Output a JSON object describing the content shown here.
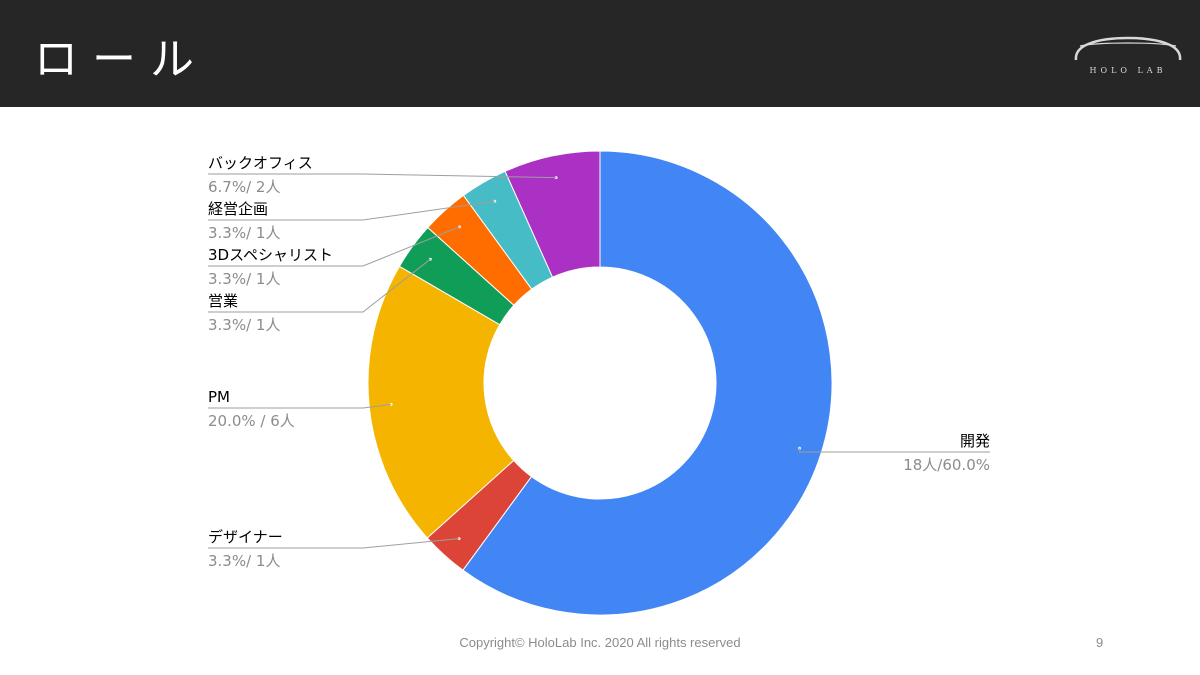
{
  "slide": {
    "title": "ロール",
    "logo_text": "HOLO LAB",
    "footer": "Copyright© HoloLab Inc. 2020 All rights reserved",
    "page_number": "9"
  },
  "colors": {
    "header_bg": "#262626",
    "leader": "#9e9e9e",
    "label": "#000000",
    "value": "#8c8c8c"
  },
  "chart_data": {
    "type": "pie",
    "variant": "donut",
    "start_angle_deg": 0,
    "direction": "clockwise",
    "slices": [
      {
        "name": "開発",
        "percent": 60.0,
        "count": 18,
        "value_label": "18人/60.0%",
        "color": "#4285f4",
        "label_side": "right"
      },
      {
        "name": "デザイナー",
        "percent": 3.3,
        "count": 1,
        "value_label": "3.3%/ 1人",
        "color": "#db4437",
        "label_side": "left"
      },
      {
        "name": "PM",
        "percent": 20.0,
        "count": 6,
        "value_label": "20.0% / 6人",
        "color": "#f4b400",
        "label_side": "left"
      },
      {
        "name": "営業",
        "percent": 3.3,
        "count": 1,
        "value_label": "3.3%/ 1人",
        "color": "#0f9d58",
        "label_side": "left"
      },
      {
        "name": "3Dスペシャリスト",
        "percent": 3.3,
        "count": 1,
        "value_label": "3.3%/ 1人",
        "color": "#ff6d01",
        "label_side": "left"
      },
      {
        "name": "経営企画",
        "percent": 3.3,
        "count": 1,
        "value_label": "3.3%/ 1人",
        "color": "#46bdc6",
        "label_side": "left"
      },
      {
        "name": "バックオフィス",
        "percent": 6.7,
        "count": 2,
        "value_label": "6.7%/ 2人",
        "color": "#ab30c4",
        "label_side": "left"
      }
    ],
    "legend": "none"
  }
}
